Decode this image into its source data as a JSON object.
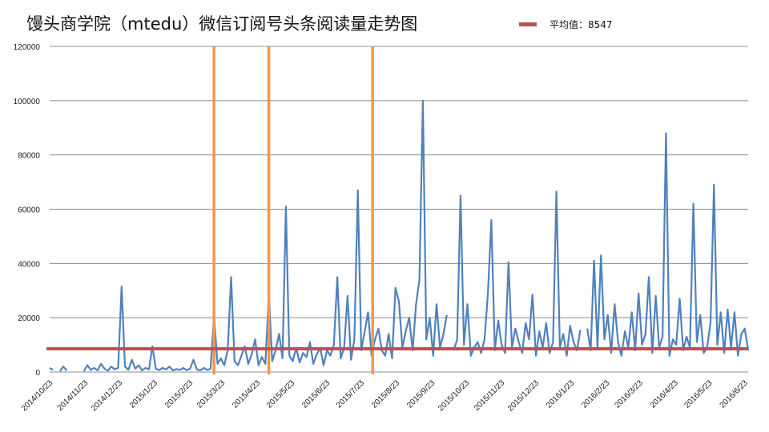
{
  "chart_data": {
    "type": "line",
    "title": "馒头商学院（mtedu）微信订阅号头条阅读量走势图",
    "xlabel": "",
    "ylabel": "",
    "ylim": [
      0,
      120000
    ],
    "yticks": [
      0,
      20000,
      40000,
      60000,
      80000,
      100000,
      120000
    ],
    "grid": true,
    "start_date": "2014/10/23",
    "step_days": 3,
    "x_tick_labels": [
      "2014/10/23",
      "2014/11/23",
      "2014/12/23",
      "2015/1/23",
      "2015/2/23",
      "2015/3/23",
      "2015/4/23",
      "2015/5/23",
      "2015/6/23",
      "2015/7/23",
      "2015/8/23",
      "2015/9/23",
      "2015/10/23",
      "2015/11/23",
      "2015/12/23",
      "2016/1/23",
      "2016/2/23",
      "2016/3/23",
      "2016/4/23",
      "2016/5/23",
      "2016/6/23"
    ],
    "legend": {
      "placement": "top-right",
      "entries": [
        {
          "label": "平均值：8547",
          "color": "#c0504d"
        }
      ]
    },
    "average": 8547,
    "marker_dates": [
      "2015/3/16",
      "2015/5/3",
      "2015/8/2"
    ],
    "colors": {
      "series": "#4f81bd",
      "average": "#c0504d",
      "markers": "#f79646",
      "grid": "#8c8c8c"
    },
    "series": [
      {
        "name": "头条阅读量",
        "values": [
          1500,
          800,
          null,
          300,
          2000,
          500,
          null,
          null,
          1200,
          null,
          300,
          2500,
          800,
          1500,
          600,
          3000,
          1200,
          500,
          2000,
          1000,
          1500,
          31500,
          2000,
          800,
          4500,
          1200,
          2500,
          600,
          1500,
          900,
          9500,
          1200,
          700,
          1500,
          900,
          2000,
          600,
          1100,
          800,
          1500,
          700,
          1200,
          4500,
          900,
          600,
          1500,
          800,
          1200,
          21000,
          3000,
          5000,
          2500,
          8000,
          35000,
          4000,
          2500,
          6000,
          9500,
          3000,
          6500,
          12000,
          2500,
          5500,
          3000,
          29000,
          4000,
          8000,
          14000,
          5000,
          61000,
          6000,
          4000,
          9000,
          3500,
          7000,
          5500,
          11000,
          3000,
          6500,
          9000,
          2500,
          8000,
          6000,
          10000,
          35000,
          5000,
          9000,
          28000,
          4500,
          12000,
          67000,
          8000,
          15000,
          22000,
          6000,
          12000,
          16000,
          8000,
          6000,
          14000,
          5000,
          31000,
          26000,
          9000,
          15000,
          20000,
          8000,
          25000,
          34000,
          100000,
          12000,
          20000,
          6000,
          25000,
          9000,
          14000,
          21000,
          null,
          8000,
          12000,
          65000,
          10000,
          25000,
          6000,
          9000,
          11000,
          7000,
          12000,
          29000,
          56000,
          8000,
          19000,
          10000,
          7000,
          40500,
          9000,
          16000,
          11000,
          7000,
          18000,
          12000,
          28500,
          6000,
          15000,
          9000,
          18000,
          7000,
          11000,
          66500,
          9000,
          14000,
          6000,
          17000,
          11000,
          8000,
          15500,
          null,
          16000,
          8000,
          41000,
          9000,
          43000,
          12000,
          21000,
          7000,
          25000,
          11000,
          6000,
          15000,
          9000,
          22000,
          8000,
          29000,
          10000,
          14000,
          35000,
          7000,
          28000,
          9000,
          13000,
          88000,
          6000,
          12000,
          10000,
          27000,
          8000,
          13000,
          9000,
          62000,
          11000,
          21000,
          7000,
          9000,
          18000,
          69000,
          10000,
          22000,
          7000,
          23000,
          9000,
          22000,
          6000,
          14000,
          16000,
          8000
        ]
      }
    ]
  }
}
